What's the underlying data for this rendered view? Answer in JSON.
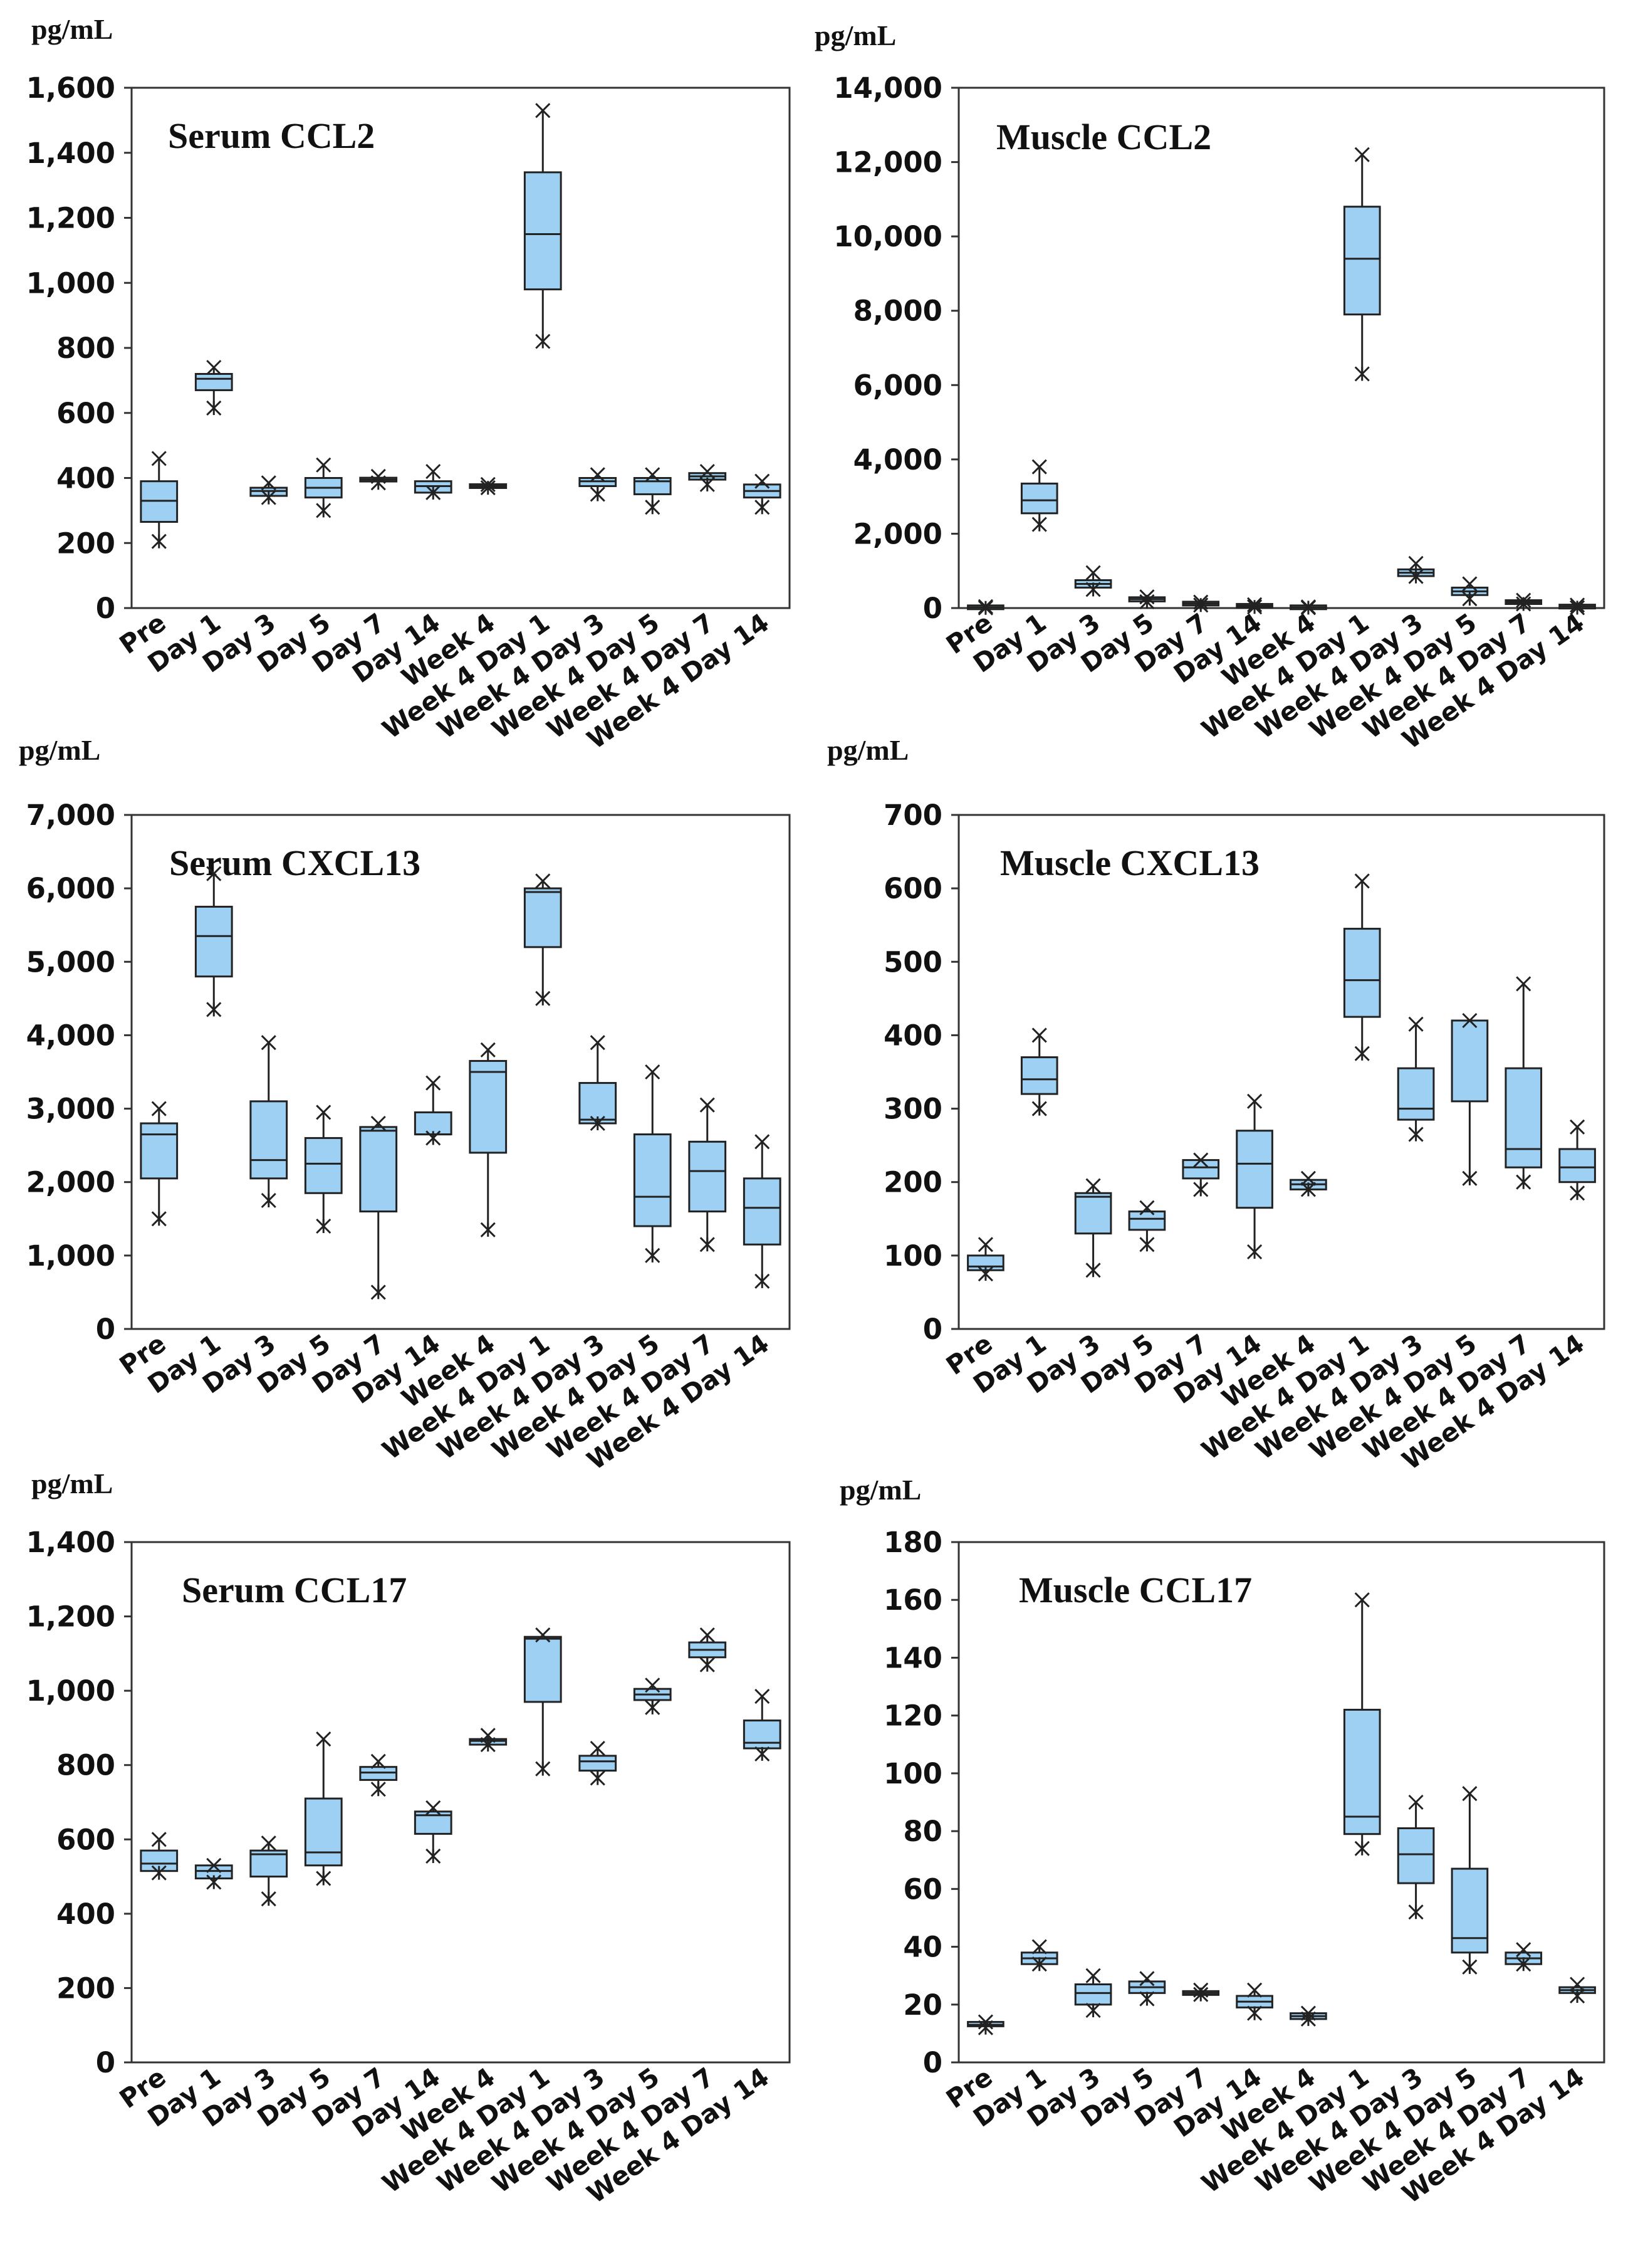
{
  "colors": {
    "box_fill": "#9dd0f2",
    "stroke": "#222222"
  },
  "chart_data": [
    {
      "type": "box",
      "title": "Serum CCL2",
      "ylabel": "pg/mL",
      "ylim": [
        0,
        1600
      ],
      "yticks": [
        0,
        200,
        400,
        600,
        800,
        1000,
        1200,
        1400,
        1600
      ],
      "ytick_labels": [
        "0",
        "200",
        "400",
        "600",
        "800",
        "1,000",
        "1,200",
        "1,400",
        "1,600"
      ],
      "categories": [
        "Pre",
        "Day 1",
        "Day 3",
        "Day 5",
        "Day 7",
        "Day 14",
        "Week 4",
        "Week 4 Day 1",
        "Week 4 Day 3",
        "Week 4 Day 5",
        "Week 4 Day 7",
        "Week 4 Day 14"
      ],
      "series": [
        {
          "category": "Pre",
          "q1": 265,
          "median": 330,
          "q3": 390,
          "max_marker": 460,
          "min_marker": 205
        },
        {
          "category": "Day 1",
          "q1": 670,
          "median": 705,
          "q3": 720,
          "max_marker": 740,
          "min_marker": 615
        },
        {
          "category": "Day 3",
          "q1": 345,
          "median": 360,
          "q3": 370,
          "max_marker": 385,
          "min_marker": 340
        },
        {
          "category": "Day 5",
          "q1": 340,
          "median": 370,
          "q3": 400,
          "max_marker": 440,
          "min_marker": 300
        },
        {
          "category": "Day 7",
          "q1": 390,
          "median": 395,
          "q3": 400,
          "max_marker": 405,
          "min_marker": 385
        },
        {
          "category": "Day 14",
          "q1": 355,
          "median": 375,
          "q3": 390,
          "max_marker": 420,
          "min_marker": 355
        },
        {
          "category": "Week 4",
          "q1": 370,
          "median": 375,
          "q3": 380,
          "max_marker": 380,
          "min_marker": 370
        },
        {
          "category": "Week 4 Day 1",
          "q1": 980,
          "median": 1150,
          "q3": 1340,
          "max_marker": 1530,
          "min_marker": 820
        },
        {
          "category": "Week 4 Day 3",
          "q1": 375,
          "median": 390,
          "q3": 400,
          "max_marker": 410,
          "min_marker": 350
        },
        {
          "category": "Week 4 Day 5",
          "q1": 350,
          "median": 390,
          "q3": 400,
          "max_marker": 410,
          "min_marker": 310
        },
        {
          "category": "Week 4 Day 7",
          "q1": 395,
          "median": 405,
          "q3": 415,
          "max_marker": 420,
          "min_marker": 380
        },
        {
          "category": "Week 4 Day 14",
          "q1": 340,
          "median": 360,
          "q3": 380,
          "max_marker": 390,
          "min_marker": 310
        }
      ]
    },
    {
      "type": "box",
      "title": "Muscle CCL2",
      "ylabel": "pg/mL",
      "ylim": [
        0,
        14000
      ],
      "yticks": [
        0,
        2000,
        4000,
        6000,
        8000,
        10000,
        12000,
        14000
      ],
      "ytick_labels": [
        "0",
        "2,000",
        "4,000",
        "6,000",
        "8,000",
        "10,000",
        "12,000",
        "14,000"
      ],
      "categories": [
        "Pre",
        "Day 1",
        "Day 3",
        "Day 5",
        "Day 7",
        "Day 14",
        "Week 4",
        "Week 4 Day 1",
        "Week 4 Day 3",
        "Week 4 Day 5",
        "Week 4 Day 7",
        "Week 4 Day 14"
      ],
      "series": [
        {
          "category": "Pre",
          "q1": 10,
          "median": 20,
          "q3": 30,
          "max_marker": 40,
          "min_marker": 5
        },
        {
          "category": "Day 1",
          "q1": 2550,
          "median": 2900,
          "q3": 3350,
          "max_marker": 3800,
          "min_marker": 2250
        },
        {
          "category": "Day 3",
          "q1": 550,
          "median": 650,
          "q3": 750,
          "max_marker": 950,
          "min_marker": 500
        },
        {
          "category": "Day 5",
          "q1": 180,
          "median": 240,
          "q3": 290,
          "max_marker": 300,
          "min_marker": 170
        },
        {
          "category": "Day 7",
          "q1": 90,
          "median": 120,
          "q3": 150,
          "max_marker": 160,
          "min_marker": 80
        },
        {
          "category": "Day 14",
          "q1": 40,
          "median": 60,
          "q3": 80,
          "max_marker": 90,
          "min_marker": 30
        },
        {
          "category": "Week 4",
          "q1": 10,
          "median": 20,
          "q3": 30,
          "max_marker": 30,
          "min_marker": 10
        },
        {
          "category": "Week 4 Day 1",
          "q1": 7900,
          "median": 9400,
          "q3": 10800,
          "max_marker": 12200,
          "min_marker": 6300
        },
        {
          "category": "Week 4 Day 3",
          "q1": 860,
          "median": 950,
          "q3": 1040,
          "max_marker": 1200,
          "min_marker": 850
        },
        {
          "category": "Week 4 Day 5",
          "q1": 350,
          "median": 450,
          "q3": 550,
          "max_marker": 650,
          "min_marker": 250
        },
        {
          "category": "Week 4 Day 7",
          "q1": 120,
          "median": 160,
          "q3": 200,
          "max_marker": 210,
          "min_marker": 110
        },
        {
          "category": "Week 4 Day 14",
          "q1": 20,
          "median": 40,
          "q3": 60,
          "max_marker": 80,
          "min_marker": 10
        }
      ]
    },
    {
      "type": "box",
      "title": "Serum CXCL13",
      "ylabel": "pg/mL",
      "ylim": [
        0,
        7000
      ],
      "yticks": [
        0,
        1000,
        2000,
        3000,
        4000,
        5000,
        6000,
        7000
      ],
      "ytick_labels": [
        "0",
        "1,000",
        "2,000",
        "3,000",
        "4,000",
        "5,000",
        "6,000",
        "7,000"
      ],
      "categories": [
        "Pre",
        "Day 1",
        "Day 3",
        "Day 5",
        "Day 7",
        "Day 14",
        "Week 4",
        "Week 4 Day 1",
        "Week 4 Day 3",
        "Week 4 Day 5",
        "Week 4 Day 7",
        "Week 4 Day 14"
      ],
      "series": [
        {
          "category": "Pre",
          "q1": 2050,
          "median": 2650,
          "q3": 2800,
          "max_marker": 3000,
          "min_marker": 1500
        },
        {
          "category": "Day 1",
          "q1": 4800,
          "median": 5350,
          "q3": 5750,
          "max_marker": 6200,
          "min_marker": 4350
        },
        {
          "category": "Day 3",
          "q1": 2050,
          "median": 2300,
          "q3": 3100,
          "max_marker": 3900,
          "min_marker": 1750
        },
        {
          "category": "Day 5",
          "q1": 1850,
          "median": 2250,
          "q3": 2600,
          "max_marker": 2950,
          "min_marker": 1400
        },
        {
          "category": "Day 7",
          "q1": 1600,
          "median": 2700,
          "q3": 2750,
          "max_marker": 2800,
          "min_marker": 500
        },
        {
          "category": "Day 14",
          "q1": 2650,
          "median": 2650,
          "q3": 2950,
          "max_marker": 3350,
          "min_marker": 2600
        },
        {
          "category": "Week 4",
          "q1": 2400,
          "median": 3500,
          "q3": 3650,
          "max_marker": 3800,
          "min_marker": 1350
        },
        {
          "category": "Week 4 Day 1",
          "q1": 5200,
          "median": 5950,
          "q3": 6000,
          "max_marker": 6100,
          "min_marker": 4500
        },
        {
          "category": "Week 4 Day 3",
          "q1": 2800,
          "median": 2850,
          "q3": 3350,
          "max_marker": 3900,
          "min_marker": 2800
        },
        {
          "category": "Week 4 Day 5",
          "q1": 1400,
          "median": 1800,
          "q3": 2650,
          "max_marker": 3500,
          "min_marker": 1000
        },
        {
          "category": "Week 4 Day 7",
          "q1": 1600,
          "median": 2150,
          "q3": 2550,
          "max_marker": 3050,
          "min_marker": 1150
        },
        {
          "category": "Week 4 Day 14",
          "q1": 1150,
          "median": 1650,
          "q3": 2050,
          "max_marker": 2550,
          "min_marker": 650
        }
      ]
    },
    {
      "type": "box",
      "title": "Muscle CXCL13",
      "ylabel": "pg/mL",
      "ylim": [
        0,
        700
      ],
      "yticks": [
        0,
        100,
        200,
        300,
        400,
        500,
        600,
        700
      ],
      "ytick_labels": [
        "0",
        "100",
        "200",
        "300",
        "400",
        "500",
        "600",
        "700"
      ],
      "categories": [
        "Pre",
        "Day 1",
        "Day 3",
        "Day 5",
        "Day 7",
        "Day 14",
        "Week 4",
        "Week 4 Day 1",
        "Week 4 Day 3",
        "Week 4 Day 5",
        "Week 4 Day 7",
        "Week 4 Day 14"
      ],
      "series": [
        {
          "category": "Pre",
          "q1": 80,
          "median": 85,
          "q3": 100,
          "max_marker": 115,
          "min_marker": 75
        },
        {
          "category": "Day 1",
          "q1": 320,
          "median": 340,
          "q3": 370,
          "max_marker": 400,
          "min_marker": 300
        },
        {
          "category": "Day 3",
          "q1": 130,
          "median": 180,
          "q3": 185,
          "max_marker": 195,
          "min_marker": 80
        },
        {
          "category": "Day 5",
          "q1": 135,
          "median": 150,
          "q3": 160,
          "max_marker": 165,
          "min_marker": 115
        },
        {
          "category": "Day 7",
          "q1": 205,
          "median": 220,
          "q3": 230,
          "max_marker": 230,
          "min_marker": 190
        },
        {
          "category": "Day 14",
          "q1": 165,
          "median": 225,
          "q3": 270,
          "max_marker": 310,
          "min_marker": 105
        },
        {
          "category": "Week 4",
          "q1": 190,
          "median": 197,
          "q3": 203,
          "max_marker": 205,
          "min_marker": 190
        },
        {
          "category": "Week 4 Day 1",
          "q1": 425,
          "median": 475,
          "q3": 545,
          "max_marker": 610,
          "min_marker": 375
        },
        {
          "category": "Week 4 Day 3",
          "q1": 285,
          "median": 300,
          "q3": 355,
          "max_marker": 415,
          "min_marker": 265
        },
        {
          "category": "Week 4 Day 5",
          "q1": 310,
          "median": 420,
          "q3": 420,
          "max_marker": 420,
          "min_marker": 205
        },
        {
          "category": "Week 4 Day 7",
          "q1": 220,
          "median": 245,
          "q3": 355,
          "max_marker": 470,
          "min_marker": 200
        },
        {
          "category": "Week 4 Day 14",
          "q1": 200,
          "median": 220,
          "q3": 245,
          "max_marker": 275,
          "min_marker": 185
        }
      ]
    },
    {
      "type": "box",
      "title": "Serum CCL17",
      "ylabel": "pg/mL",
      "ylim": [
        0,
        1400
      ],
      "yticks": [
        0,
        200,
        400,
        600,
        800,
        1000,
        1200,
        1400
      ],
      "ytick_labels": [
        "0",
        "200",
        "400",
        "600",
        "800",
        "1,000",
        "1,200",
        "1,400"
      ],
      "categories": [
        "Pre",
        "Day 1",
        "Day 3",
        "Day 5",
        "Day 7",
        "Day 14",
        "Week 4",
        "Week 4 Day 1",
        "Week 4 Day 3",
        "Week 4 Day 5",
        "Week 4 Day 7",
        "Week 4 Day 14"
      ],
      "series": [
        {
          "category": "Pre",
          "q1": 515,
          "median": 535,
          "q3": 570,
          "max_marker": 600,
          "min_marker": 510
        },
        {
          "category": "Day 1",
          "q1": 495,
          "median": 515,
          "q3": 530,
          "max_marker": 530,
          "min_marker": 485
        },
        {
          "category": "Day 3",
          "q1": 500,
          "median": 560,
          "q3": 570,
          "max_marker": 590,
          "min_marker": 440
        },
        {
          "category": "Day 5",
          "q1": 530,
          "median": 565,
          "q3": 710,
          "max_marker": 870,
          "min_marker": 495
        },
        {
          "category": "Day 7",
          "q1": 760,
          "median": 780,
          "q3": 795,
          "max_marker": 810,
          "min_marker": 735
        },
        {
          "category": "Day 14",
          "q1": 615,
          "median": 665,
          "q3": 675,
          "max_marker": 685,
          "min_marker": 555
        },
        {
          "category": "Week 4",
          "q1": 855,
          "median": 865,
          "q3": 870,
          "max_marker": 880,
          "min_marker": 855
        },
        {
          "category": "Week 4 Day 1",
          "q1": 970,
          "median": 1140,
          "q3": 1145,
          "max_marker": 1150,
          "min_marker": 790
        },
        {
          "category": "Week 4 Day 3",
          "q1": 785,
          "median": 810,
          "q3": 825,
          "max_marker": 845,
          "min_marker": 765
        },
        {
          "category": "Week 4 Day 5",
          "q1": 975,
          "median": 990,
          "q3": 1005,
          "max_marker": 1015,
          "min_marker": 955
        },
        {
          "category": "Week 4 Day 7",
          "q1": 1090,
          "median": 1110,
          "q3": 1130,
          "max_marker": 1150,
          "min_marker": 1070
        },
        {
          "category": "Week 4 Day 14",
          "q1": 845,
          "median": 860,
          "q3": 920,
          "max_marker": 985,
          "min_marker": 830
        }
      ]
    },
    {
      "type": "box",
      "title": "Muscle CCL17",
      "ylabel": "pg/mL",
      "ylim": [
        0,
        180
      ],
      "yticks": [
        0,
        20,
        40,
        60,
        80,
        100,
        120,
        140,
        160,
        180
      ],
      "ytick_labels": [
        "0",
        "20",
        "40",
        "60",
        "80",
        "100",
        "120",
        "140",
        "160",
        "180"
      ],
      "categories": [
        "Pre",
        "Day 1",
        "Day 3",
        "Day 5",
        "Day 7",
        "Day 14",
        "Week 4",
        "Week 4 Day 1",
        "Week 4 Day 3",
        "Week 4 Day 5",
        "Week 4 Day 7",
        "Week 4 Day 14"
      ],
      "series": [
        {
          "category": "Pre",
          "q1": 12.5,
          "median": 13,
          "q3": 14,
          "max_marker": 14,
          "min_marker": 12
        },
        {
          "category": "Day 1",
          "q1": 34,
          "median": 36,
          "q3": 38,
          "max_marker": 40,
          "min_marker": 34
        },
        {
          "category": "Day 3",
          "q1": 20,
          "median": 24,
          "q3": 27,
          "max_marker": 30,
          "min_marker": 18
        },
        {
          "category": "Day 5",
          "q1": 24,
          "median": 26,
          "q3": 28,
          "max_marker": 29,
          "min_marker": 22
        },
        {
          "category": "Day 7",
          "q1": 23.5,
          "median": 24,
          "q3": 24.5,
          "max_marker": 25,
          "min_marker": 23.5
        },
        {
          "category": "Day 14",
          "q1": 19,
          "median": 21,
          "q3": 23,
          "max_marker": 25,
          "min_marker": 17
        },
        {
          "category": "Week 4",
          "q1": 15,
          "median": 16,
          "q3": 17,
          "max_marker": 17,
          "min_marker": 15
        },
        {
          "category": "Week 4 Day 1",
          "q1": 79,
          "median": 85,
          "q3": 122,
          "max_marker": 160,
          "min_marker": 74
        },
        {
          "category": "Week 4 Day 3",
          "q1": 62,
          "median": 72,
          "q3": 81,
          "max_marker": 90,
          "min_marker": 52
        },
        {
          "category": "Week 4 Day 5",
          "q1": 38,
          "median": 43,
          "q3": 67,
          "max_marker": 93,
          "min_marker": 33
        },
        {
          "category": "Week 4 Day 7",
          "q1": 34,
          "median": 36,
          "q3": 38,
          "max_marker": 39,
          "min_marker": 34
        },
        {
          "category": "Week 4 Day 14",
          "q1": 24,
          "median": 25,
          "q3": 26,
          "max_marker": 27,
          "min_marker": 23
        }
      ]
    }
  ]
}
